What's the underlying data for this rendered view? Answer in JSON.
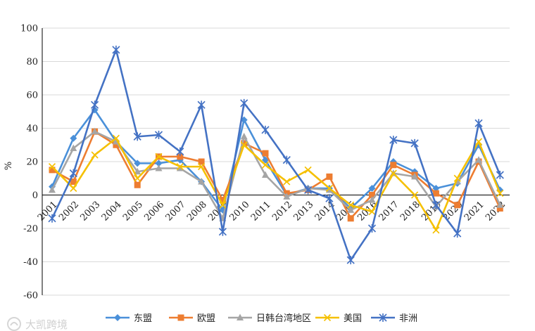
{
  "watermark": "大凯跨境",
  "chart_data": {
    "type": "line",
    "title": "",
    "xlabel": "",
    "ylabel": "%",
    "ylim": [
      -60,
      100
    ],
    "yticks": [
      100,
      80,
      60,
      40,
      20,
      0,
      -20,
      -40,
      -60
    ],
    "grid": "horizontal",
    "legend_position": "bottom",
    "categories": [
      "2001",
      "2002",
      "2003",
      "2004",
      "2005",
      "2006",
      "2007",
      "2008",
      "2009",
      "2010",
      "2011",
      "2012",
      "2013",
      "2014",
      "2015",
      "2016",
      "2017",
      "2018",
      "2019",
      "2020",
      "2021",
      "2022"
    ],
    "series": [
      {
        "name": "东盟",
        "color": "#4a90d9",
        "marker": "diamond",
        "values": [
          5,
          34,
          51,
          32,
          19,
          19,
          21,
          8,
          -9,
          45,
          21,
          0,
          4,
          4,
          -8,
          4,
          20,
          14,
          4,
          7,
          30,
          3
        ]
      },
      {
        "name": "欧盟",
        "color": "#ed7d31",
        "marker": "square",
        "values": [
          15,
          8,
          38,
          30,
          6,
          23,
          23,
          20,
          -3,
          31,
          25,
          1,
          3,
          11,
          -14,
          0,
          18,
          12,
          1,
          -6,
          20,
          -8
        ]
      },
      {
        "name": "日韩台湾地区",
        "color": "#a5a5a5",
        "marker": "triangle",
        "values": [
          3,
          28,
          38,
          32,
          14,
          16,
          16,
          8,
          -14,
          35,
          12,
          -1,
          4,
          3,
          -9,
          -3,
          13,
          11,
          -7,
          8,
          21,
          -6
        ]
      },
      {
        "name": "美国",
        "color": "#f5c000",
        "marker": "x",
        "values": [
          17,
          4,
          24,
          34,
          10,
          23,
          17,
          17,
          -6,
          30,
          18,
          8,
          15,
          4,
          -6,
          -10,
          13,
          0,
          -21,
          10,
          32,
          1
        ]
      },
      {
        "name": "非洲",
        "color": "#4472c4",
        "marker": "star",
        "values": [
          -14,
          13,
          54,
          87,
          35,
          36,
          26,
          54,
          -22,
          55,
          39,
          21,
          3,
          -2,
          -39,
          -20,
          33,
          31,
          -6,
          -23,
          43,
          12
        ]
      }
    ]
  }
}
